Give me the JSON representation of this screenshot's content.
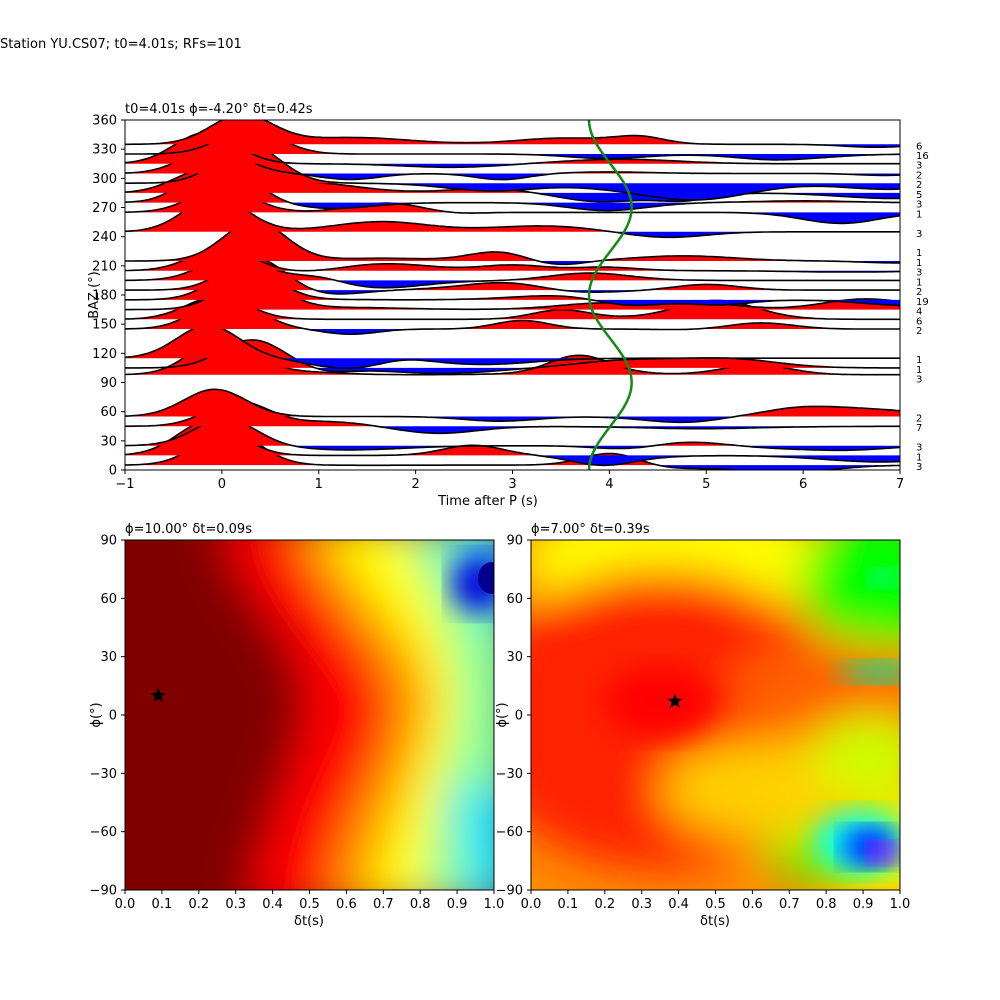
{
  "figure": {
    "suptitle": "Station YU.CS07; t0=4.01s; RFs=101"
  },
  "chart_data": [
    {
      "type": "line",
      "panel": "receiver-function-gather",
      "title": "t0=4.01s ϕ=-4.20° δt=0.42s",
      "xlabel": "Time after P (s)",
      "ylabel": "BAZ (°)",
      "xlim": [
        -1,
        7
      ],
      "ylim": [
        0,
        360
      ],
      "xticks": [
        -1,
        0,
        1,
        2,
        3,
        4,
        5,
        6,
        7
      ],
      "yticks": [
        0,
        30,
        60,
        90,
        120,
        150,
        180,
        210,
        240,
        270,
        300,
        330,
        360
      ],
      "fill_positive_color": "#ff0000",
      "fill_negative_color": "#0000ff",
      "trace_color": "#000000",
      "curve_color": "#138a13",
      "curve_label": "t0 time curve",
      "traces_baz": [
        5,
        15,
        25,
        45,
        55,
        98,
        105,
        115,
        145,
        155,
        165,
        175,
        185,
        195,
        205,
        215,
        245,
        265,
        275,
        285,
        295,
        305,
        315,
        325,
        335
      ],
      "counts": [
        3,
        1,
        3,
        7,
        2,
        3,
        1,
        1,
        2,
        6,
        4,
        19,
        2,
        1,
        3,
        1,
        1,
        3,
        1,
        3,
        5,
        2,
        2,
        3,
        16,
        6
      ],
      "counts_baz": [
        4,
        14,
        24,
        44,
        54,
        94,
        104,
        114,
        144,
        154,
        164,
        174,
        184,
        194,
        204,
        214,
        224,
        244,
        264,
        274,
        284,
        294,
        304,
        314,
        324,
        334
      ]
    },
    {
      "type": "heatmap",
      "panel": "grid-search-left",
      "title": "ϕ=10.00° δt=0.09s",
      "xlabel": "δt(s)",
      "ylabel": "ϕ(°)",
      "xlim": [
        0.0,
        1.0
      ],
      "ylim": [
        -90,
        90
      ],
      "xticks": [
        0.0,
        0.1,
        0.2,
        0.3,
        0.4,
        0.5,
        0.6,
        0.7,
        0.8,
        0.9,
        1.0
      ],
      "xtick_labels": [
        "0.0",
        "0.1",
        "0.2",
        "0.3",
        "0.4",
        "0.5",
        "0.6",
        "0.7",
        "0.8",
        "0.9",
        "1.0"
      ],
      "yticks": [
        -90,
        -60,
        -30,
        0,
        30,
        60,
        90
      ],
      "colormap": "jet",
      "best_fit": {
        "dt": 0.09,
        "phi": 10
      }
    },
    {
      "type": "heatmap",
      "panel": "grid-search-right",
      "title": "ϕ=7.00° δt=0.39s",
      "xlabel": "δt(s)",
      "ylabel": "ϕ(°)",
      "xlim": [
        0.0,
        1.0
      ],
      "ylim": [
        -90,
        90
      ],
      "xticks": [
        0.0,
        0.1,
        0.2,
        0.3,
        0.4,
        0.5,
        0.6,
        0.7,
        0.8,
        0.9,
        1.0
      ],
      "xtick_labels": [
        "0.0",
        "0.1",
        "0.2",
        "0.3",
        "0.4",
        "0.5",
        "0.6",
        "0.7",
        "0.8",
        "0.9",
        "1.0"
      ],
      "yticks": [
        -90,
        -60,
        -30,
        0,
        30,
        60,
        90
      ],
      "colormap": "hsv",
      "best_fit": {
        "dt": 0.39,
        "phi": 7
      }
    }
  ]
}
